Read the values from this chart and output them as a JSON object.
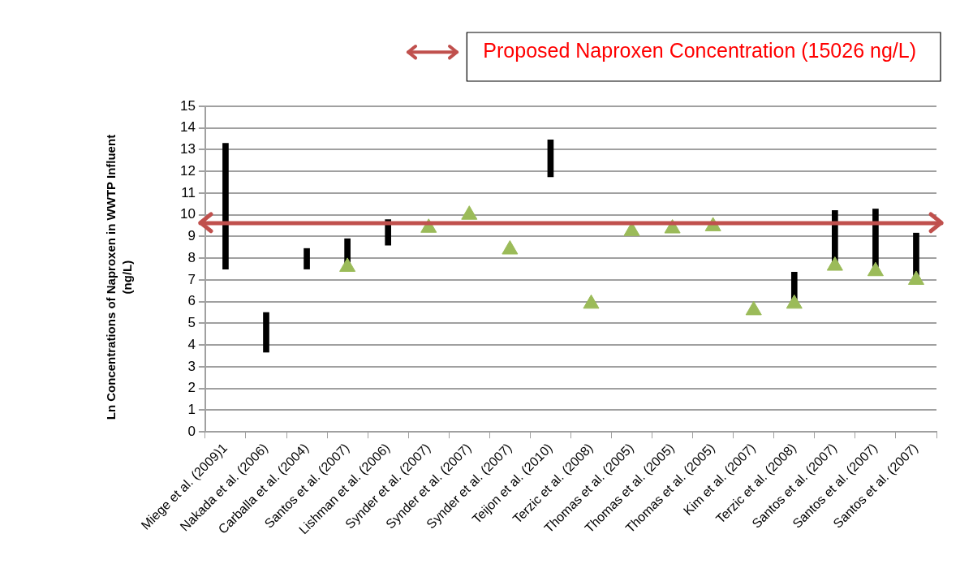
{
  "chart_data": {
    "type": "bar",
    "ylabel": "Ln Concentrations of Naproxen in WWTP Influent (ng/L)",
    "categories": [
      "Miege et al. (2009)1",
      "Nakada et al. (2006)",
      "Carballa et al. (2004)",
      "Santos et al. (2007)",
      "Lishman et al. (2006)",
      "Synder et al. (2007)",
      "Synder et al. (2007)",
      "Synder et al. (2007)",
      "Teijon et al. (2010)",
      "Terzic et al. (2008)",
      "Thomas et al. (2005)",
      "Thomas et al. (2005)",
      "Thomas et al. (2005)",
      "Kim et al. (2007)",
      "Terzic et al. (2008)",
      "Santos et al. (2007)",
      "Santos et al. (2007)",
      "Santos et al. (2007)"
    ],
    "series": [
      {
        "color": "#000000",
        "base": [
          7.5,
          3.67,
          7.5,
          7.6,
          8.6,
          null,
          null,
          null,
          11.75,
          null,
          null,
          null,
          null,
          null,
          5.9,
          7.65,
          7.4,
          7.0
        ],
        "values": [
          5.8,
          1.83,
          0.95,
          1.3,
          1.18,
          null,
          null,
          null,
          1.7,
          null,
          null,
          null,
          null,
          null,
          1.46,
          2.55,
          2.87,
          2.16
        ]
      },
      {
        "type": "scatter",
        "color": "#9bbb59",
        "marker": "triangle",
        "values": [
          null,
          null,
          null,
          7.6,
          null,
          9.4,
          10.0,
          8.4,
          null,
          5.9,
          9.25,
          9.37,
          9.47,
          5.6,
          5.9,
          7.65,
          7.4,
          7.0
        ]
      }
    ],
    "ylim": [
      0,
      15
    ],
    "yticks": [
      0,
      1,
      2,
      3,
      4,
      5,
      6,
      7,
      8,
      9,
      10,
      11,
      12,
      13,
      14,
      15
    ],
    "grid": "y",
    "legend": "top right",
    "ref_lines": [
      {
        "axis": "y",
        "value": 9.62,
        "label": "Proposed Naproxen Concentration (15026 ng/L)",
        "color": "#c0504d"
      }
    ]
  }
}
